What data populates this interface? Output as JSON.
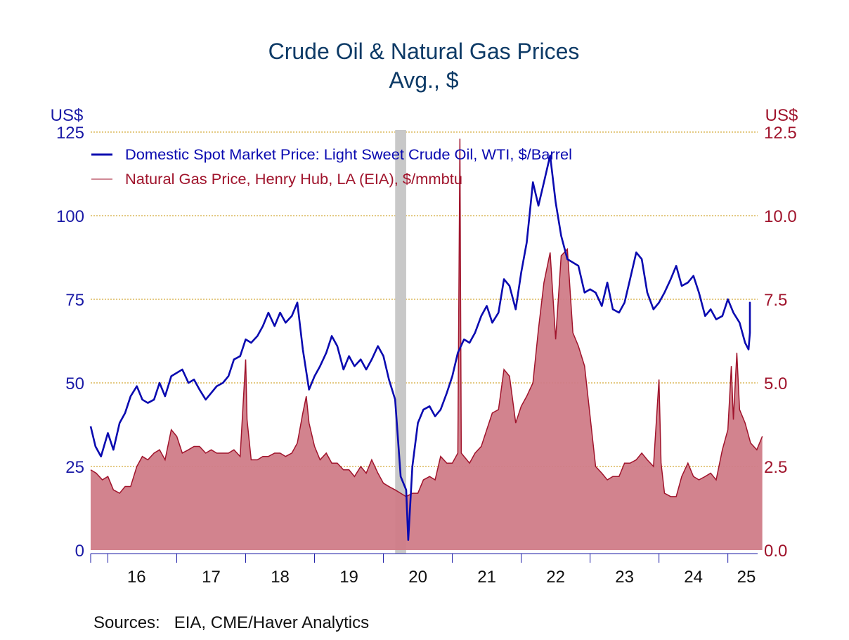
{
  "chart_data": {
    "type": "line",
    "title": "Crude Oil & Natural Gas Prices",
    "subtitle": "Avg., $",
    "y_left": {
      "label": "US$",
      "min": 0,
      "max": 125,
      "ticks": [
        "0",
        "25",
        "50",
        "75",
        "100",
        "125"
      ]
    },
    "y_right": {
      "label": "US$",
      "min": 0,
      "max": 12.5,
      "ticks": [
        "0.0",
        "2.5",
        "5.0",
        "7.5",
        "10.0",
        "12.5"
      ]
    },
    "x": {
      "min": 2015.75,
      "max": 2025.33,
      "tick_years": [
        2016,
        2017,
        2018,
        2019,
        2020,
        2021,
        2022,
        2023,
        2024,
        2025
      ],
      "tick_labels": [
        "16",
        "17",
        "18",
        "19",
        "20",
        "21",
        "22",
        "23",
        "24",
        "25"
      ]
    },
    "recession": {
      "start": 2020.17,
      "end": 2020.33
    },
    "grid": "horizontal dotted",
    "legend_position": "top-left",
    "series": [
      {
        "name": "Domestic Spot Market Price: Light Sweet Crude Oil, WTI, $/Barrel",
        "axis": "left",
        "style": "line",
        "color": "#0a0ab0",
        "points": [
          [
            2015.75,
            37
          ],
          [
            2015.82,
            31
          ],
          [
            2015.9,
            28
          ],
          [
            2016.0,
            35
          ],
          [
            2016.08,
            30
          ],
          [
            2016.17,
            38
          ],
          [
            2016.25,
            41
          ],
          [
            2016.33,
            46
          ],
          [
            2016.42,
            49
          ],
          [
            2016.5,
            45
          ],
          [
            2016.58,
            44
          ],
          [
            2016.67,
            45
          ],
          [
            2016.75,
            50
          ],
          [
            2016.83,
            46
          ],
          [
            2016.92,
            52
          ],
          [
            2017.0,
            53
          ],
          [
            2017.08,
            54
          ],
          [
            2017.17,
            50
          ],
          [
            2017.25,
            51
          ],
          [
            2017.33,
            48
          ],
          [
            2017.42,
            45
          ],
          [
            2017.5,
            47
          ],
          [
            2017.58,
            49
          ],
          [
            2017.67,
            50
          ],
          [
            2017.75,
            52
          ],
          [
            2017.83,
            57
          ],
          [
            2017.92,
            58
          ],
          [
            2018.0,
            63
          ],
          [
            2018.08,
            62
          ],
          [
            2018.17,
            64
          ],
          [
            2018.25,
            67
          ],
          [
            2018.33,
            71
          ],
          [
            2018.42,
            67
          ],
          [
            2018.5,
            71
          ],
          [
            2018.58,
            68
          ],
          [
            2018.67,
            70
          ],
          [
            2018.75,
            74
          ],
          [
            2018.83,
            60
          ],
          [
            2018.92,
            48
          ],
          [
            2019.0,
            52
          ],
          [
            2019.08,
            55
          ],
          [
            2019.17,
            59
          ],
          [
            2019.25,
            64
          ],
          [
            2019.33,
            61
          ],
          [
            2019.42,
            54
          ],
          [
            2019.5,
            58
          ],
          [
            2019.58,
            55
          ],
          [
            2019.67,
            57
          ],
          [
            2019.75,
            54
          ],
          [
            2019.83,
            57
          ],
          [
            2019.92,
            61
          ],
          [
            2020.0,
            58
          ],
          [
            2020.08,
            51
          ],
          [
            2020.17,
            45
          ],
          [
            2020.25,
            22
          ],
          [
            2020.33,
            18
          ],
          [
            2020.36,
            3
          ],
          [
            2020.42,
            25
          ],
          [
            2020.5,
            38
          ],
          [
            2020.58,
            42
          ],
          [
            2020.67,
            43
          ],
          [
            2020.75,
            40
          ],
          [
            2020.83,
            42
          ],
          [
            2020.92,
            47
          ],
          [
            2021.0,
            52
          ],
          [
            2021.08,
            59
          ],
          [
            2021.17,
            63
          ],
          [
            2021.25,
            62
          ],
          [
            2021.33,
            65
          ],
          [
            2021.42,
            70
          ],
          [
            2021.5,
            73
          ],
          [
            2021.58,
            68
          ],
          [
            2021.67,
            71
          ],
          [
            2021.75,
            81
          ],
          [
            2021.83,
            79
          ],
          [
            2021.92,
            72
          ],
          [
            2022.0,
            83
          ],
          [
            2022.08,
            92
          ],
          [
            2022.17,
            110
          ],
          [
            2022.25,
            103
          ],
          [
            2022.33,
            110
          ],
          [
            2022.42,
            118
          ],
          [
            2022.5,
            104
          ],
          [
            2022.58,
            94
          ],
          [
            2022.67,
            87
          ],
          [
            2022.75,
            86
          ],
          [
            2022.83,
            85
          ],
          [
            2022.92,
            77
          ],
          [
            2023.0,
            78
          ],
          [
            2023.08,
            77
          ],
          [
            2023.17,
            73
          ],
          [
            2023.25,
            80
          ],
          [
            2023.33,
            72
          ],
          [
            2023.42,
            71
          ],
          [
            2023.5,
            74
          ],
          [
            2023.58,
            81
          ],
          [
            2023.67,
            89
          ],
          [
            2023.75,
            87
          ],
          [
            2023.83,
            77
          ],
          [
            2023.92,
            72
          ],
          [
            2024.0,
            74
          ],
          [
            2024.08,
            77
          ],
          [
            2024.17,
            81
          ],
          [
            2024.25,
            85
          ],
          [
            2024.33,
            79
          ],
          [
            2024.42,
            80
          ],
          [
            2024.5,
            82
          ],
          [
            2024.58,
            77
          ],
          [
            2024.67,
            70
          ],
          [
            2024.75,
            72
          ],
          [
            2024.83,
            69
          ],
          [
            2024.92,
            70
          ],
          [
            2025.0,
            75
          ],
          [
            2025.08,
            71
          ],
          [
            2025.17,
            68
          ],
          [
            2025.25,
            62
          ],
          [
            2025.3,
            60
          ],
          [
            2025.33,
            65
          ],
          [
            2025.38,
            74
          ],
          [
            2025.42,
            66
          ],
          [
            2025.5,
            67
          ]
        ]
      },
      {
        "name": "Natural Gas Price, Henry Hub, LA (EIA), $/mmbtu",
        "axis": "right",
        "style": "area",
        "color": "#a0142c",
        "fill": "#d07c88",
        "points": [
          [
            2015.75,
            2.4
          ],
          [
            2015.83,
            2.3
          ],
          [
            2015.92,
            2.1
          ],
          [
            2016.0,
            2.2
          ],
          [
            2016.08,
            1.8
          ],
          [
            2016.17,
            1.7
          ],
          [
            2016.25,
            1.9
          ],
          [
            2016.33,
            1.9
          ],
          [
            2016.42,
            2.5
          ],
          [
            2016.5,
            2.8
          ],
          [
            2016.58,
            2.7
          ],
          [
            2016.67,
            2.9
          ],
          [
            2016.75,
            3.0
          ],
          [
            2016.83,
            2.7
          ],
          [
            2016.92,
            3.6
          ],
          [
            2017.0,
            3.4
          ],
          [
            2017.08,
            2.9
          ],
          [
            2017.17,
            3.0
          ],
          [
            2017.25,
            3.1
          ],
          [
            2017.33,
            3.1
          ],
          [
            2017.42,
            2.9
          ],
          [
            2017.5,
            3.0
          ],
          [
            2017.58,
            2.9
          ],
          [
            2017.67,
            2.9
          ],
          [
            2017.75,
            2.9
          ],
          [
            2017.83,
            3.0
          ],
          [
            2017.92,
            2.8
          ],
          [
            2018.0,
            5.7
          ],
          [
            2018.02,
            3.9
          ],
          [
            2018.08,
            2.7
          ],
          [
            2018.17,
            2.7
          ],
          [
            2018.25,
            2.8
          ],
          [
            2018.33,
            2.8
          ],
          [
            2018.42,
            2.9
          ],
          [
            2018.5,
            2.9
          ],
          [
            2018.58,
            2.8
          ],
          [
            2018.67,
            2.9
          ],
          [
            2018.75,
            3.2
          ],
          [
            2018.83,
            4.1
          ],
          [
            2018.88,
            4.6
          ],
          [
            2018.92,
            3.8
          ],
          [
            2019.0,
            3.1
          ],
          [
            2019.08,
            2.7
          ],
          [
            2019.17,
            2.9
          ],
          [
            2019.25,
            2.6
          ],
          [
            2019.33,
            2.6
          ],
          [
            2019.42,
            2.4
          ],
          [
            2019.5,
            2.4
          ],
          [
            2019.58,
            2.2
          ],
          [
            2019.67,
            2.5
          ],
          [
            2019.75,
            2.3
          ],
          [
            2019.83,
            2.7
          ],
          [
            2019.92,
            2.3
          ],
          [
            2020.0,
            2.0
          ],
          [
            2020.08,
            1.9
          ],
          [
            2020.17,
            1.8
          ],
          [
            2020.25,
            1.7
          ],
          [
            2020.33,
            1.6
          ],
          [
            2020.42,
            1.7
          ],
          [
            2020.5,
            1.7
          ],
          [
            2020.58,
            2.1
          ],
          [
            2020.67,
            2.2
          ],
          [
            2020.75,
            2.1
          ],
          [
            2020.83,
            2.8
          ],
          [
            2020.92,
            2.6
          ],
          [
            2021.0,
            2.6
          ],
          [
            2021.08,
            2.9
          ],
          [
            2021.11,
            12.3
          ],
          [
            2021.13,
            2.9
          ],
          [
            2021.25,
            2.6
          ],
          [
            2021.33,
            2.9
          ],
          [
            2021.42,
            3.1
          ],
          [
            2021.5,
            3.6
          ],
          [
            2021.58,
            4.1
          ],
          [
            2021.67,
            4.2
          ],
          [
            2021.75,
            5.4
          ],
          [
            2021.83,
            5.2
          ],
          [
            2021.92,
            3.8
          ],
          [
            2022.0,
            4.3
          ],
          [
            2022.08,
            4.6
          ],
          [
            2022.17,
            5.0
          ],
          [
            2022.25,
            6.6
          ],
          [
            2022.33,
            8.0
          ],
          [
            2022.42,
            8.9
          ],
          [
            2022.5,
            6.3
          ],
          [
            2022.58,
            8.8
          ],
          [
            2022.67,
            9.0
          ],
          [
            2022.75,
            6.5
          ],
          [
            2022.83,
            6.1
          ],
          [
            2022.92,
            5.5
          ],
          [
            2023.0,
            4.0
          ],
          [
            2023.08,
            2.5
          ],
          [
            2023.17,
            2.3
          ],
          [
            2023.25,
            2.1
          ],
          [
            2023.33,
            2.2
          ],
          [
            2023.42,
            2.2
          ],
          [
            2023.5,
            2.6
          ],
          [
            2023.58,
            2.6
          ],
          [
            2023.67,
            2.7
          ],
          [
            2023.75,
            2.9
          ],
          [
            2023.83,
            2.7
          ],
          [
            2023.92,
            2.5
          ],
          [
            2024.0,
            5.1
          ],
          [
            2024.03,
            2.6
          ],
          [
            2024.08,
            1.7
          ],
          [
            2024.17,
            1.6
          ],
          [
            2024.25,
            1.6
          ],
          [
            2024.33,
            2.2
          ],
          [
            2024.42,
            2.6
          ],
          [
            2024.5,
            2.2
          ],
          [
            2024.58,
            2.1
          ],
          [
            2024.67,
            2.2
          ],
          [
            2024.75,
            2.3
          ],
          [
            2024.83,
            2.1
          ],
          [
            2024.92,
            3.0
          ],
          [
            2025.0,
            3.6
          ],
          [
            2025.05,
            5.5
          ],
          [
            2025.08,
            3.9
          ],
          [
            2025.13,
            5.9
          ],
          [
            2025.17,
            4.2
          ],
          [
            2025.25,
            3.8
          ],
          [
            2025.33,
            3.2
          ],
          [
            2025.42,
            3.0
          ],
          [
            2025.5,
            3.4
          ]
        ]
      }
    ]
  },
  "footer": {
    "sources": "Sources:   EIA, CME/Haver Analytics"
  }
}
